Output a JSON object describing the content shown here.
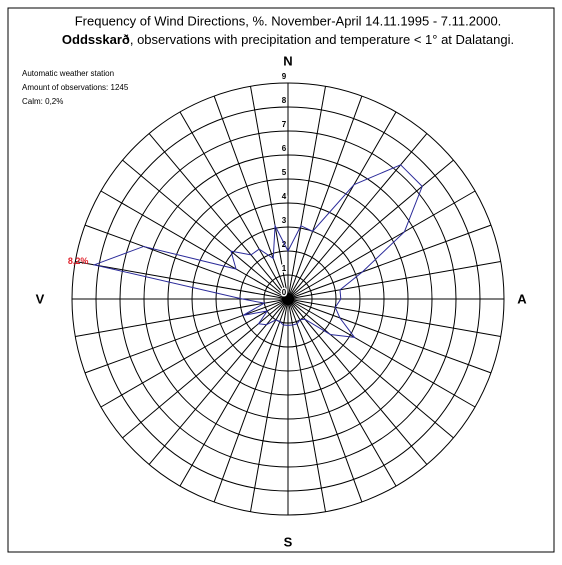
{
  "chart_data": {
    "type": "polar",
    "title": "Frequency of Wind Directions, %. November-April 14.11.1995 - 7.11.2000.",
    "subtitle_bold": "Oddsskarð",
    "subtitle": ", observations with precipitation and temperature < 1° at Dalatangi.",
    "notes": [
      "Automatic weather station",
      "Amount of observations: 1245",
      "Calm: 0,2%"
    ],
    "directions": {
      "north": "N",
      "east": "A",
      "south": "S",
      "west": "V"
    },
    "values": [
      2.0,
      3.1,
      3.0,
      5.5,
      7.3,
      7.3,
      5.6,
      3.3,
      2.2,
      2.2,
      2.0,
      2.3,
      3.2,
      2.3,
      1.1,
      1.0,
      1.1,
      1.1,
      1.1,
      1.1,
      1.0,
      1.0,
      1.4,
      1.6,
      1.0,
      2.0,
      1.0,
      1.9,
      8.2,
      6.4,
      2.5,
      3.1,
      2.4,
      2.4,
      1.8,
      3.1
    ],
    "max_index": 28,
    "max_label": "8,2%",
    "color": "#2b2b9a",
    "max_label_color": "#e0202a",
    "rlim": [
      0,
      9
    ],
    "rticks": [
      0,
      1,
      2,
      3,
      4,
      5,
      6,
      7,
      8,
      9
    ],
    "grid": true
  }
}
